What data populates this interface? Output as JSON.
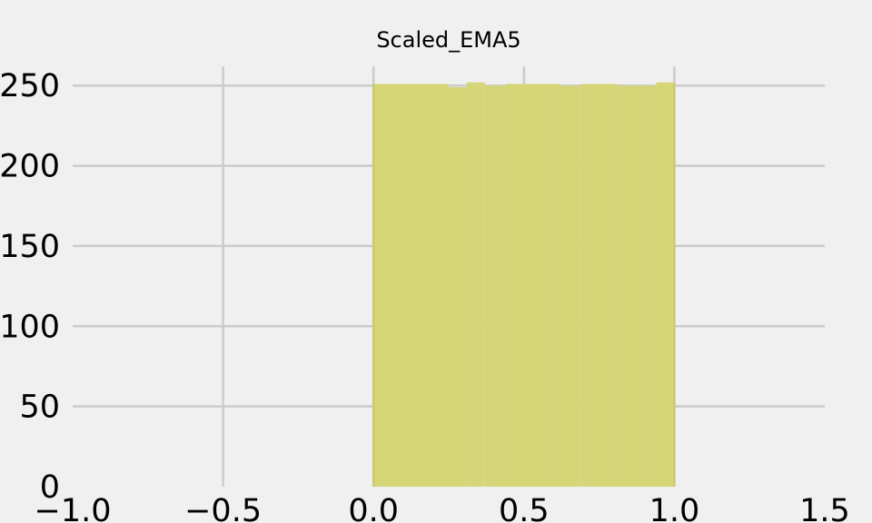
{
  "chart_data": {
    "type": "bar",
    "title": "Scaled_EMA5",
    "xlabel": "",
    "ylabel": "",
    "xlim": [
      -1.0,
      1.5
    ],
    "ylim": [
      0,
      262
    ],
    "x_ticks": [
      -1.0,
      -0.5,
      0.0,
      0.5,
      1.0,
      1.5
    ],
    "x_tick_labels": [
      "−1.0",
      "−0.5",
      "0.0",
      "0.5",
      "1.0",
      "1.5"
    ],
    "y_ticks": [
      0,
      50,
      100,
      150,
      200,
      250
    ],
    "y_tick_labels": [
      "0",
      "50",
      "100",
      "150",
      "200",
      "250"
    ],
    "grid": true,
    "bins": [
      {
        "x0": 0.0,
        "x1": 0.25,
        "value": 251
      },
      {
        "x0": 0.25,
        "x1": 0.31,
        "value": 249
      },
      {
        "x0": 0.31,
        "x1": 0.37,
        "value": 252
      },
      {
        "x0": 0.37,
        "x1": 0.44,
        "value": 250
      },
      {
        "x0": 0.44,
        "x1": 0.62,
        "value": 251
      },
      {
        "x0": 0.62,
        "x1": 0.69,
        "value": 250
      },
      {
        "x0": 0.69,
        "x1": 0.81,
        "value": 251
      },
      {
        "x0": 0.81,
        "x1": 0.94,
        "value": 250
      },
      {
        "x0": 0.94,
        "x1": 1.0,
        "value": 252
      }
    ],
    "colors": {
      "background": "#f0f0f0",
      "grid": "#cbcbcb",
      "bar_fill": "#d6d679",
      "bar_stroke": "#c8c86a",
      "text": "#000000"
    }
  }
}
